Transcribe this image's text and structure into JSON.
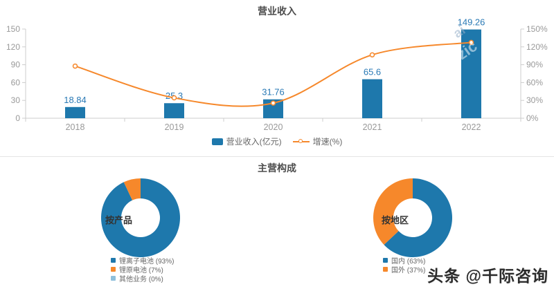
{
  "revenue": {
    "title": "营业收入",
    "legend": [
      {
        "label": "营业收入(亿元)",
        "marker": "bar",
        "color": "#1e78ac"
      },
      {
        "label": "增速(%)",
        "marker": "line",
        "color": "#f6882b"
      }
    ],
    "watermark_fragments": [
      "ai",
      "zic"
    ]
  },
  "composition": {
    "title": "主营构成"
  },
  "footer": {
    "credit": "头条 @千际咨询"
  },
  "chart_data": [
    {
      "type": "bar",
      "title": "营业收入",
      "categories": [
        "2018",
        "2019",
        "2020",
        "2021",
        "2022"
      ],
      "series": [
        {
          "name": "营业收入(亿元)",
          "type": "bar",
          "values": [
            18.84,
            25.3,
            31.76,
            65.6,
            149.26
          ],
          "color": "#1e78ac"
        },
        {
          "name": "增速(%)",
          "type": "line",
          "values": [
            87.7,
            34.3,
            25.5,
            106.6,
            127.5
          ],
          "color": "#f6882b",
          "estimated": true
        }
      ],
      "bar_labels": [
        "18.84",
        "25.3",
        "31.76",
        "65.6",
        "149.26"
      ],
      "bar_label_color": "#2979b5",
      "y_left": {
        "ticks": [
          0,
          30,
          60,
          90,
          120,
          150
        ],
        "max": 150
      },
      "y_right": {
        "ticks": [
          "0%",
          "30%",
          "60%",
          "90%",
          "120%",
          "150%"
        ],
        "max": 150
      },
      "axis_color": "#cccccc",
      "axis_text_color": "#999999",
      "grid": false,
      "legend_position": "bottom"
    },
    {
      "type": "pie",
      "title": "按产品",
      "categories": [
        "锂离子电池",
        "锂原电池",
        "其他业务"
      ],
      "values": [
        93,
        7,
        0
      ],
      "unit": "%",
      "colors": [
        "#1e78ac",
        "#f6882b",
        "#8fc0dc"
      ],
      "legend_labels": [
        "锂离子电池 (93%)",
        "锂原电池 (7%)",
        "其他业务 (0%)"
      ],
      "donut": true,
      "legend_position": "bottom"
    },
    {
      "type": "pie",
      "title": "按地区",
      "categories": [
        "国内",
        "国外"
      ],
      "values": [
        63,
        37
      ],
      "unit": "%",
      "colors": [
        "#1e78ac",
        "#f6882b"
      ],
      "legend_labels": [
        "国内 (63%)",
        "国外 (37%)"
      ],
      "donut": true,
      "legend_position": "bottom"
    }
  ]
}
